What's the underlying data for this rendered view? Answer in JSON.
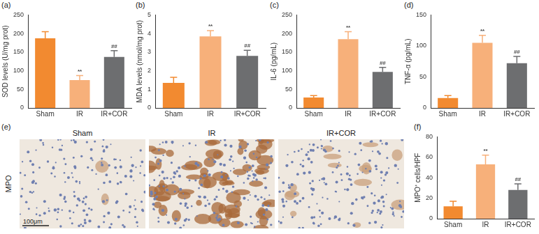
{
  "chart_data": [
    {
      "type": "bar",
      "panel": "(a)",
      "ylabel": "SOD levels (U/mg prot)",
      "categories": [
        "Sham",
        "IR",
        "IR+COR"
      ],
      "values": [
        187,
        75,
        137
      ],
      "errors": [
        18,
        12,
        17
      ],
      "significance": [
        null,
        "**",
        "##"
      ],
      "colors": [
        "#f28a30",
        "#f7b07a",
        "#6d6e70"
      ],
      "ylim": [
        0,
        250
      ],
      "yticks": [
        0,
        50,
        100,
        150,
        200,
        250
      ],
      "grid": false
    },
    {
      "type": "bar",
      "panel": "(b)",
      "ylabel": "MDA levels (nmol/mg prot)",
      "categories": [
        "Sham",
        "IR",
        "IR+COR"
      ],
      "values": [
        1.35,
        3.85,
        2.8
      ],
      "errors": [
        0.3,
        0.3,
        0.3
      ],
      "significance": [
        null,
        "**",
        "##"
      ],
      "colors": [
        "#f28a30",
        "#f7b07a",
        "#6d6e70"
      ],
      "ylim": [
        0,
        5
      ],
      "yticks": [
        0,
        1,
        2,
        3,
        4,
        5
      ],
      "grid": false
    },
    {
      "type": "bar",
      "panel": "(c)",
      "ylabel": "IL-6 (pg/mL)",
      "categories": [
        "Sham",
        "IR",
        "IR+COR"
      ],
      "values": [
        28,
        185,
        97
      ],
      "errors": [
        5,
        20,
        12
      ],
      "significance": [
        null,
        "**",
        "##"
      ],
      "colors": [
        "#f28a30",
        "#f7b07a",
        "#6d6e70"
      ],
      "ylim": [
        0,
        250
      ],
      "yticks": [
        0,
        50,
        100,
        150,
        200,
        250
      ],
      "grid": false
    },
    {
      "type": "bar",
      "panel": "(d)",
      "ylabel": "TNF-α (pg/mL)",
      "categories": [
        "Sham",
        "IR",
        "IR+COR"
      ],
      "values": [
        16,
        105,
        72
      ],
      "errors": [
        4,
        12,
        11
      ],
      "significance": [
        null,
        "**",
        "##"
      ],
      "colors": [
        "#f28a30",
        "#f7b07a",
        "#6d6e70"
      ],
      "ylim": [
        0,
        150
      ],
      "yticks": [
        0,
        50,
        100,
        150
      ],
      "grid": false
    },
    {
      "type": "bar",
      "panel": "(f)",
      "ylabel": "MPO⁺ cells/HPF",
      "categories": [
        "Sham",
        "IR",
        "IR+COR"
      ],
      "values": [
        12,
        53,
        28
      ],
      "errors": [
        5,
        9,
        6
      ],
      "significance": [
        null,
        "**",
        "##"
      ],
      "colors": [
        "#f28a30",
        "#f7b07a",
        "#6d6e70"
      ],
      "ylim": [
        0,
        80
      ],
      "yticks": [
        0,
        20,
        40,
        60,
        80
      ],
      "grid": false
    }
  ],
  "image_panel": {
    "panel": "(e)",
    "columns": [
      "Sham",
      "IR",
      "IR+COR"
    ],
    "row_label": "MPO",
    "scale_bar": "100μm"
  }
}
